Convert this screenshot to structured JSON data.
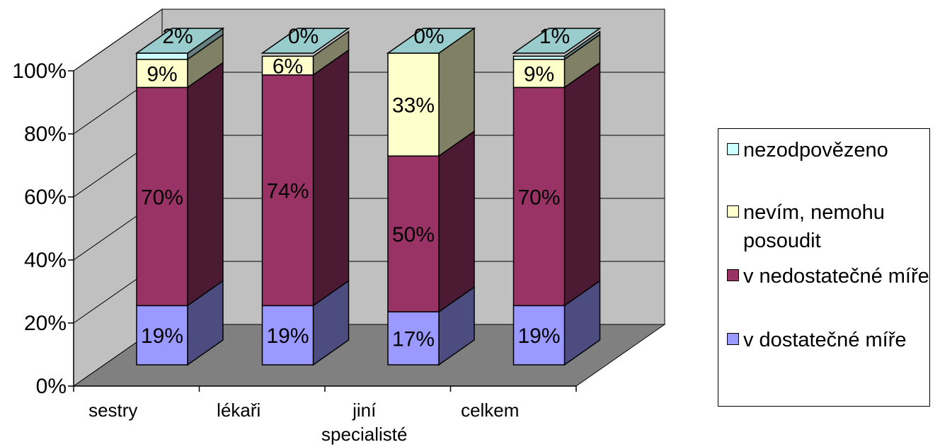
{
  "chart_data": {
    "type": "bar",
    "stacked": true,
    "three_d": true,
    "categories": [
      "sestry",
      "lékaři",
      "jiní specialisté",
      "celkem"
    ],
    "category_lines": [
      [
        "sestry"
      ],
      [
        "lékaři"
      ],
      [
        "jiní",
        "specialisté"
      ],
      [
        "celkem"
      ]
    ],
    "series": [
      {
        "name": "v dostatečné míře",
        "values": [
          19,
          19,
          17,
          19
        ],
        "labels": [
          "19%",
          "19%",
          "17%",
          "19%"
        ]
      },
      {
        "name": "v nedostatečné míře",
        "values": [
          70,
          74,
          50,
          70
        ],
        "labels": [
          "70%",
          "74%",
          "50%",
          "70%"
        ]
      },
      {
        "name": "nevím, nemohu posoudit",
        "values": [
          9,
          6,
          33,
          9
        ],
        "labels": [
          "9%",
          "6%",
          "33%",
          "9%"
        ]
      },
      {
        "name": "nezodpovězeno",
        "values": [
          2,
          0,
          0,
          1
        ],
        "labels": [
          "2%",
          "0%",
          "0%",
          "1%"
        ]
      }
    ],
    "colors": [
      {
        "front": "#9999ff",
        "side": "#4c4c80",
        "top": "#7a7acc"
      },
      {
        "front": "#993366",
        "side": "#4d1a33",
        "top": "#7a2952"
      },
      {
        "front": "#ffffcc",
        "side": "#808066",
        "top": "#ccccaa"
      },
      {
        "front": "#ccffff",
        "side": "#668080",
        "top": "#99cccc"
      }
    ],
    "y_ticks": [
      "0%",
      "20%",
      "40%",
      "60%",
      "80%",
      "100%"
    ],
    "ylim": [
      0,
      100
    ],
    "grid": true,
    "legend_position": "right",
    "wall_color": "#c0c0c0",
    "floor_color": "#808080"
  },
  "legend": {
    "items": [
      {
        "label": "nezodpovězeno",
        "color": "#ccffff"
      },
      {
        "label": "nevím, nemohu posoudit",
        "color": "#ffffcc"
      },
      {
        "label": "v nedostatečné míře",
        "color": "#993366"
      },
      {
        "label": "v dostatečné míře",
        "color": "#9999ff"
      }
    ]
  }
}
